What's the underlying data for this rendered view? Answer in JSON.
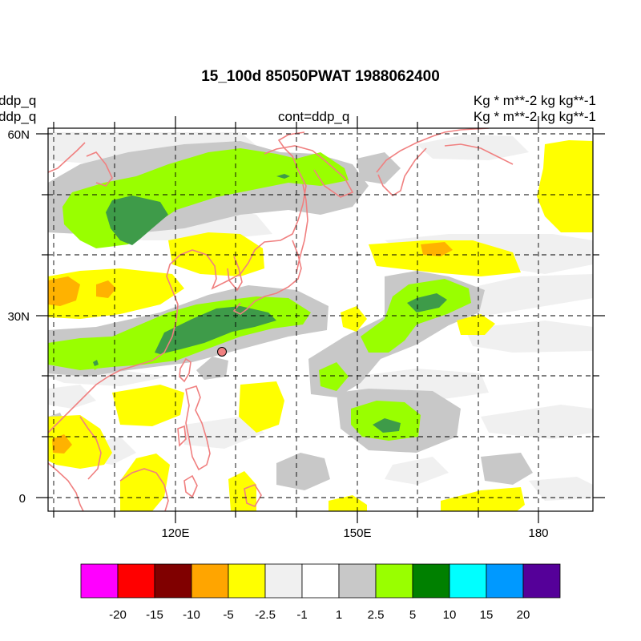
{
  "title": "15_100d 85050PWAT  1988062400",
  "left_labels": [
    "ddp_q",
    "ddp_q"
  ],
  "center_label": "cont=ddp_q",
  "right_labels": [
    "Kg  * m**-2 kg kg**-1",
    "Kg  * m**-2 kg kg**-1"
  ],
  "lat_ticks": [
    "60N",
    "30N",
    "0"
  ],
  "lon_ticks": [
    "120E",
    "150E",
    "180"
  ],
  "station_marker": {
    "lon": 127.5,
    "lat": 24.5,
    "color": "#f08080"
  },
  "colorbar": {
    "colors": [
      "#ff00ff",
      "#ff0000",
      "#800000",
      "#ffa500",
      "#ffff00",
      "#f0f0f0",
      "#ffffff",
      "#c8c8c8",
      "#99ff00",
      "#008000",
      "#00ffff",
      "#0099ff",
      "#550099"
    ],
    "labels": [
      "-20",
      "-15",
      "-10",
      "-5",
      "-2.5",
      "-1",
      "1",
      "2.5",
      "5",
      "10",
      "15",
      "20"
    ]
  },
  "coastline_color": "#f08080"
}
